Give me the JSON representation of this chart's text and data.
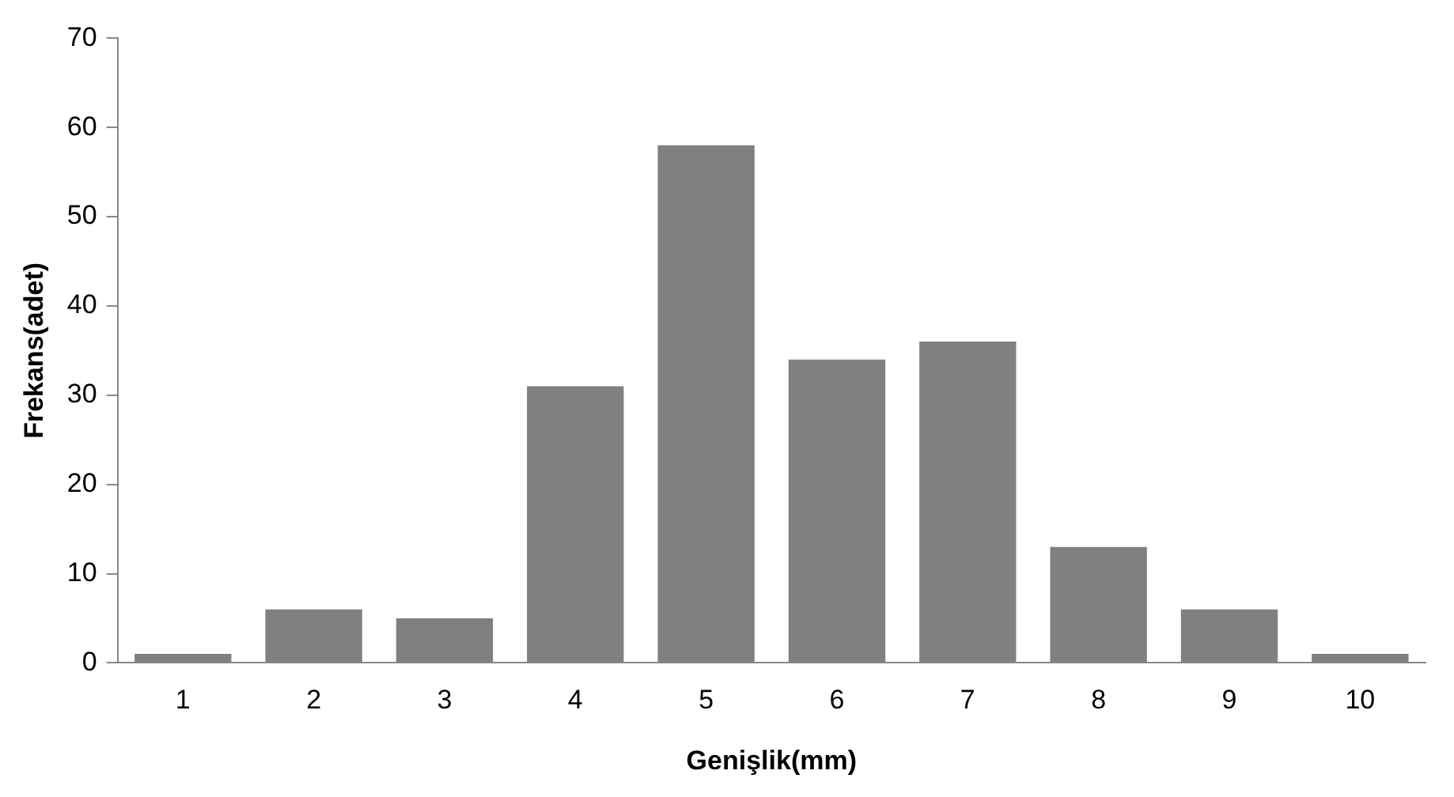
{
  "chart_data": {
    "type": "bar",
    "xlabel": "Genişlik(mm)",
    "ylabel": "Frekans(adet)",
    "categories": [
      "1",
      "2",
      "3",
      "4",
      "5",
      "6",
      "7",
      "8",
      "9",
      "10"
    ],
    "values": [
      1,
      6,
      5,
      31,
      58,
      34,
      36,
      13,
      6,
      1
    ],
    "color": "#808080",
    "ylim": [
      0,
      70
    ],
    "yticks": [
      0,
      10,
      20,
      30,
      40,
      50,
      60,
      70
    ],
    "grid": false,
    "legend": false
  }
}
